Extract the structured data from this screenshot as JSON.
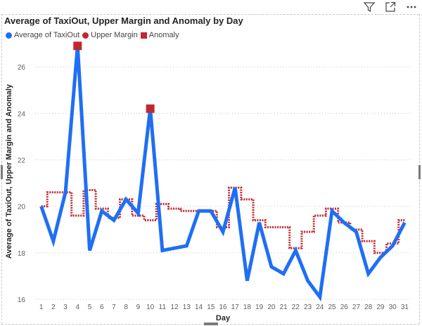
{
  "toolbar": {
    "filter_icon": "filter-icon",
    "focus_icon": "focus-mode-icon",
    "more_icon": "more-options-icon"
  },
  "colors": {
    "average": "#1f6ff5",
    "upper": "#c0282f",
    "anomaly": "#c0282f"
  },
  "chart_data": {
    "type": "line",
    "title": "Average of TaxiOut, Upper Margin and Anomaly by Day",
    "xlabel": "Day",
    "ylabel": "Average of TaxiOut, Upper Margin and Anomaly",
    "categories": [
      "1",
      "2",
      "3",
      "4",
      "5",
      "6",
      "7",
      "8",
      "9",
      "10",
      "11",
      "12",
      "13",
      "14",
      "15",
      "16",
      "17",
      "18",
      "19",
      "20",
      "21",
      "22",
      "23",
      "24",
      "25",
      "26",
      "27",
      "28",
      "29",
      "30",
      "31"
    ],
    "ylim": [
      16,
      27
    ],
    "yticks": [
      "16",
      "18",
      "20",
      "22",
      "24",
      "26"
    ],
    "grid": true,
    "legend_position": "top-left",
    "series": [
      {
        "name": "Average of TaxiOut",
        "style": "line",
        "values": [
          20.0,
          18.5,
          20.6,
          26.9,
          18.1,
          19.8,
          19.4,
          20.3,
          19.7,
          24.2,
          18.1,
          18.2,
          18.3,
          19.8,
          19.8,
          18.9,
          20.8,
          16.8,
          19.3,
          17.4,
          17.1,
          18.1,
          16.8,
          16.1,
          19.8,
          19.3,
          18.9,
          17.1,
          17.8,
          18.3,
          19.3
        ]
      },
      {
        "name": "Upper Margin",
        "style": "step",
        "values": [
          20.0,
          20.6,
          20.6,
          19.6,
          20.7,
          19.9,
          19.5,
          20.3,
          19.6,
          19.4,
          20.1,
          19.9,
          19.8,
          19.8,
          19.8,
          19.1,
          20.8,
          20.3,
          19.4,
          19.1,
          19.1,
          18.2,
          18.9,
          19.6,
          19.9,
          19.3,
          19.0,
          18.5,
          18.0,
          18.4,
          19.4
        ]
      },
      {
        "name": "Anomaly",
        "style": "marker",
        "values": [
          null,
          null,
          null,
          26.9,
          null,
          null,
          null,
          null,
          null,
          24.2,
          null,
          null,
          null,
          null,
          null,
          null,
          null,
          null,
          null,
          null,
          null,
          null,
          null,
          null,
          null,
          null,
          null,
          null,
          null,
          null,
          null
        ]
      }
    ]
  }
}
